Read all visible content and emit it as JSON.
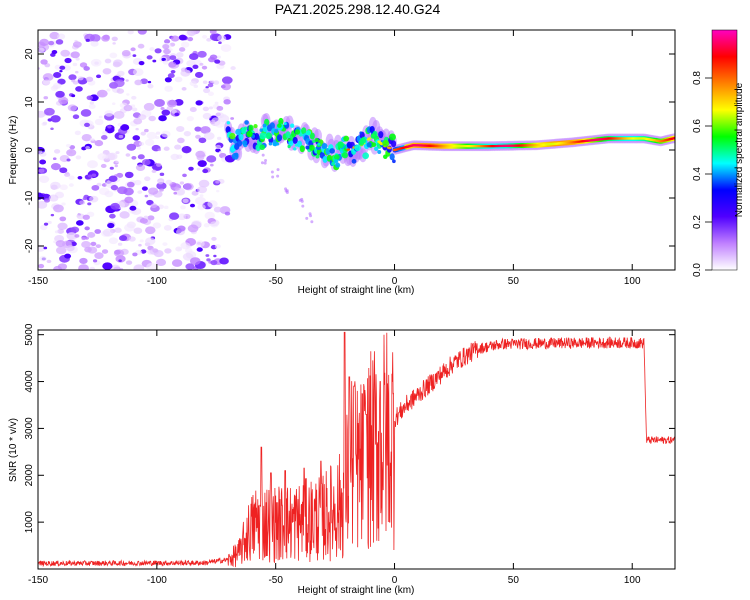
{
  "figure": {
    "title": "PAZ1.2025.298.12.40.G24"
  },
  "chart_data": [
    {
      "type": "heatmap",
      "name": "spectrogram",
      "xlabel": "Height of straight line (km)",
      "ylabel": "Frequency (Hz)",
      "xlim": [
        -150,
        118
      ],
      "ylim": [
        -25,
        25
      ],
      "xticks": [
        -150,
        -100,
        -50,
        0,
        50,
        100
      ],
      "yticks": [
        -20,
        -10,
        0,
        10,
        20
      ],
      "tick_labels_x": [
        "-150",
        "-100",
        "-50",
        "0",
        "50",
        "100"
      ],
      "tick_labels_y": [
        "-20",
        "-10",
        "0",
        "10",
        "20"
      ],
      "noise_region_x": [
        -150,
        -70
      ],
      "ridge": [
        {
          "x": -70,
          "y": 3
        },
        {
          "x": -66,
          "y": 1
        },
        {
          "x": -62,
          "y": 3
        },
        {
          "x": -58,
          "y": 2
        },
        {
          "x": -54,
          "y": 4
        },
        {
          "x": -50,
          "y": 3
        },
        {
          "x": -47,
          "y": 5
        },
        {
          "x": -43,
          "y": 3
        },
        {
          "x": -38,
          "y": 2
        },
        {
          "x": -34,
          "y": 1
        },
        {
          "x": -30,
          "y": 0
        },
        {
          "x": -25,
          "y": -1
        },
        {
          "x": -20,
          "y": 0
        },
        {
          "x": -14,
          "y": 1
        },
        {
          "x": -9,
          "y": 3
        },
        {
          "x": -5,
          "y": 1
        },
        {
          "x": 0,
          "y": 0
        },
        {
          "x": 8,
          "y": 1
        },
        {
          "x": 20,
          "y": 0.8
        },
        {
          "x": 40,
          "y": 0.8
        },
        {
          "x": 60,
          "y": 1
        },
        {
          "x": 75,
          "y": 1.6
        },
        {
          "x": 90,
          "y": 2.4
        },
        {
          "x": 105,
          "y": 2.4
        },
        {
          "x": 112,
          "y": 1.8
        },
        {
          "x": 118,
          "y": 2.5
        }
      ],
      "branch": [
        {
          "x": -55,
          "y": -2
        },
        {
          "x": -50,
          "y": -5
        },
        {
          "x": -45,
          "y": -8
        },
        {
          "x": -40,
          "y": -11
        },
        {
          "x": -36,
          "y": -14
        }
      ],
      "colorbar": {
        "label": "Normalized spectral amplitude",
        "range": [
          0,
          1
        ],
        "ticks": [
          0.0,
          0.2,
          0.4,
          0.6,
          0.8
        ],
        "tick_labels": [
          "0.0",
          "0.2",
          "0.4",
          "0.6",
          "0.8"
        ],
        "colors": [
          "#ffffff",
          "#c080ff",
          "#5000ff",
          "#0000ff",
          "#00ffff",
          "#00ff00",
          "#ffff00",
          "#ff8000",
          "#ff0000",
          "#ff00c0"
        ]
      }
    },
    {
      "type": "line",
      "name": "snr",
      "xlabel": "Height of straight line (km)",
      "ylabel": "SNR (10 * v/v)",
      "xlim": [
        -150,
        118
      ],
      "ylim": [
        0,
        5100
      ],
      "xticks": [
        -150,
        -100,
        -50,
        0,
        50,
        100
      ],
      "yticks": [
        1000,
        2000,
        3000,
        4000,
        5000
      ],
      "tick_labels_x": [
        "-150",
        "-100",
        "-50",
        "0",
        "50",
        "100"
      ],
      "tick_labels_y": [
        "1000",
        "2000",
        "3000",
        "4000",
        "5000"
      ],
      "color": "#ee2222",
      "envelope": [
        {
          "x": -150,
          "y": 120
        },
        {
          "x": -80,
          "y": 130
        },
        {
          "x": -70,
          "y": 200
        },
        {
          "x": -65,
          "y": 400
        },
        {
          "x": -62,
          "y": 800
        },
        {
          "x": -58,
          "y": 1100
        },
        {
          "x": -50,
          "y": 1050
        },
        {
          "x": -40,
          "y": 1100
        },
        {
          "x": -30,
          "y": 1200
        },
        {
          "x": -22,
          "y": 1500
        },
        {
          "x": -18,
          "y": 2500
        },
        {
          "x": -15,
          "y": 2300
        },
        {
          "x": -10,
          "y": 2700
        },
        {
          "x": -5,
          "y": 3000
        },
        {
          "x": 0,
          "y": 3200
        },
        {
          "x": 5,
          "y": 3500
        },
        {
          "x": 15,
          "y": 3950
        },
        {
          "x": 25,
          "y": 4400
        },
        {
          "x": 35,
          "y": 4700
        },
        {
          "x": 45,
          "y": 4800
        },
        {
          "x": 70,
          "y": 4820
        },
        {
          "x": 95,
          "y": 4830
        },
        {
          "x": 105,
          "y": 4820
        },
        {
          "x": 106,
          "y": 2750
        },
        {
          "x": 118,
          "y": 2750
        }
      ],
      "spikes": [
        {
          "x": -56,
          "y": 2600
        },
        {
          "x": -52,
          "y": 2050
        },
        {
          "x": -46,
          "y": 2100
        },
        {
          "x": -38,
          "y": 2150
        },
        {
          "x": -31,
          "y": 2300
        },
        {
          "x": -21,
          "y": 5050
        },
        {
          "x": -19,
          "y": 4100
        },
        {
          "x": -17,
          "y": 3900
        },
        {
          "x": -12,
          "y": 3300
        },
        {
          "x": -6,
          "y": 4000
        },
        {
          "x": -2,
          "y": 1000
        }
      ]
    }
  ]
}
